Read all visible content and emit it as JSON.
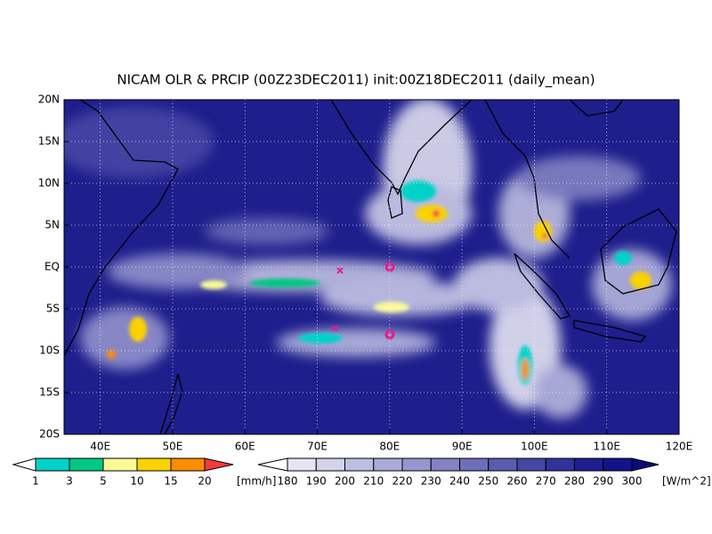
{
  "title": "NICAM OLR & PRCIP (00Z23DEC2011) init:00Z18DEC2011 (daily_mean)",
  "map": {
    "lonlim": [
      35,
      120
    ],
    "latlim": [
      -20,
      20
    ],
    "lonticks": [
      {
        "value": 40,
        "label": "40E"
      },
      {
        "value": 50,
        "label": "50E"
      },
      {
        "value": 60,
        "label": "60E"
      },
      {
        "value": 70,
        "label": "70E"
      },
      {
        "value": 80,
        "label": "80E"
      },
      {
        "value": 90,
        "label": "90E"
      },
      {
        "value": 100,
        "label": "100E"
      },
      {
        "value": 110,
        "label": "110E"
      },
      {
        "value": 120,
        "label": "120E"
      }
    ],
    "latticks": [
      {
        "value": 20,
        "label": "20N"
      },
      {
        "value": 15,
        "label": "15N"
      },
      {
        "value": 10,
        "label": "10N"
      },
      {
        "value": 5,
        "label": "5N"
      },
      {
        "value": 0,
        "label": "EQ"
      },
      {
        "value": -5,
        "label": "5S"
      },
      {
        "value": -10,
        "label": "10S"
      },
      {
        "value": -15,
        "label": "15S"
      },
      {
        "value": -20,
        "label": "20S"
      }
    ]
  },
  "precip_colorbar": {
    "levels": [
      1,
      3,
      5,
      10,
      15,
      20
    ],
    "unit": "[mm/h]",
    "colors": [
      "#ffffff",
      "#00d2c8",
      "#00c882",
      "#fafa96",
      "#fad200",
      "#fa8c00",
      "#f03c3c"
    ]
  },
  "olr_colorbar": {
    "levels": [
      180,
      190,
      200,
      210,
      220,
      230,
      240,
      250,
      260,
      270,
      280,
      290,
      300
    ],
    "unit": "[W/m^2]",
    "colors": [
      "#ffffff",
      "#e6e6f3",
      "#d2d2eb",
      "#bebee2",
      "#aaaad8",
      "#9696cd",
      "#8282c3",
      "#6e6eb9",
      "#5a5aaf",
      "#4646a5",
      "#32329b",
      "#1e1e91",
      "#14148a",
      "#0a0a78"
    ]
  }
}
